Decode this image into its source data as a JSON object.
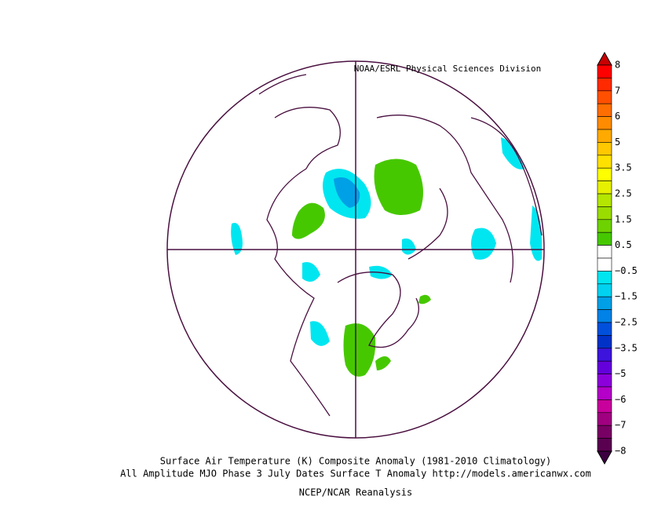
{
  "header": {
    "credit": "NOAA/ESRL Physical Sciences Division"
  },
  "colorbar": {
    "labels": [
      "8",
      "7",
      "6",
      "5",
      "3.5",
      "2.5",
      "1.5",
      "0.5",
      "−0.5",
      "−1.5",
      "−2.5",
      "−3.5",
      "−5",
      "−6",
      "−7",
      "−8"
    ],
    "top_color": "#c80000",
    "bottom_color": "#3c0040",
    "colors": [
      "#ff0000",
      "#ff2a00",
      "#ff5000",
      "#ff6e00",
      "#ff8c00",
      "#ffaa00",
      "#ffc800",
      "#ffe100",
      "#ffff00",
      "#e6f000",
      "#b4e600",
      "#9bdc00",
      "#6ed200",
      "#46c800",
      "#ffffff",
      "#ffffff",
      "#00e6f0",
      "#00d2f0",
      "#00a0e6",
      "#0082e6",
      "#0050dc",
      "#0032c8",
      "#3c14dc",
      "#6400dc",
      "#8c00dc",
      "#b400c8",
      "#c8009c",
      "#a00080",
      "#780064",
      "#5a0050"
    ]
  },
  "caption": {
    "line1": "Surface Air Temperature (K) Composite Anomaly (1981-2010 Climatology)",
    "line2": "All Amplitude MJO Phase 3 July Dates Surface T Anomaly http://models.americanwx.com",
    "line3": "NCEP/NCAR Reanalysis"
  }
}
